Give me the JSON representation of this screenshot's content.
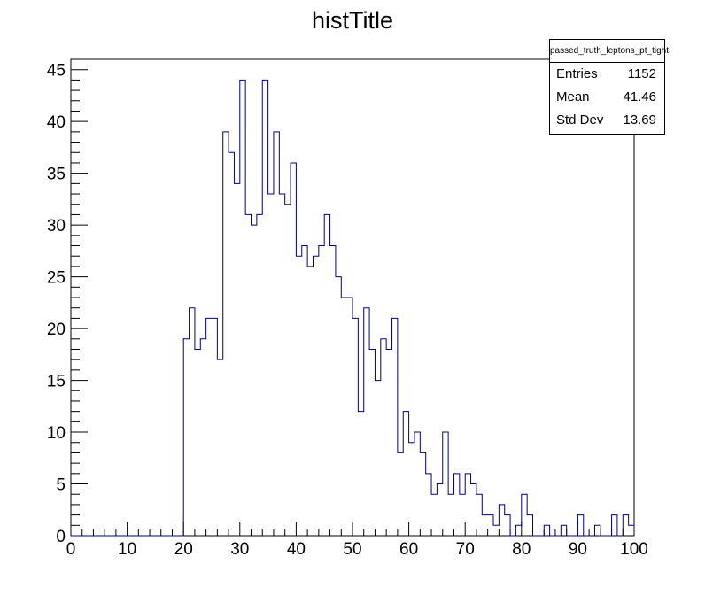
{
  "title": "histTitle",
  "stats": {
    "name": "passed_truth_leptons_pt_tight",
    "rows": [
      {
        "label": "Entries",
        "value": "1152"
      },
      {
        "label": "Mean",
        "value": "41.46"
      },
      {
        "label": "Std Dev",
        "value": "13.69"
      }
    ]
  },
  "colors": {
    "line": "#000080",
    "axis": "#000000"
  },
  "chart_data": {
    "type": "histogram",
    "title": "histTitle",
    "xlim": [
      0,
      100
    ],
    "ylim": [
      0,
      46
    ],
    "bin_width": 1,
    "x_ticks": [
      0,
      10,
      20,
      30,
      40,
      50,
      60,
      70,
      80,
      90,
      100
    ],
    "y_ticks": [
      0,
      5,
      10,
      15,
      20,
      25,
      30,
      35,
      40,
      45
    ],
    "bin_edges_start": 0,
    "counts": [
      0,
      0,
      0,
      0,
      0,
      0,
      0,
      0,
      0,
      0,
      0,
      0,
      0,
      0,
      0,
      0,
      0,
      0,
      0,
      0,
      19,
      22,
      18,
      19,
      21,
      21,
      17,
      39,
      37,
      34,
      44,
      31,
      30,
      31,
      44,
      33,
      39,
      33,
      32,
      36,
      27,
      28,
      26,
      27,
      28,
      31,
      28,
      25,
      23,
      23,
      21,
      12,
      22,
      18,
      15,
      19,
      18,
      21,
      8,
      12,
      9,
      10,
      8,
      6,
      4,
      5,
      10,
      4,
      6,
      4,
      6,
      5,
      4,
      2,
      2,
      1,
      3,
      2,
      0,
      1,
      4,
      2,
      0,
      0,
      1,
      0,
      0,
      1,
      0,
      0,
      2,
      0,
      0,
      1,
      0,
      0,
      2,
      0,
      2,
      1
    ]
  }
}
